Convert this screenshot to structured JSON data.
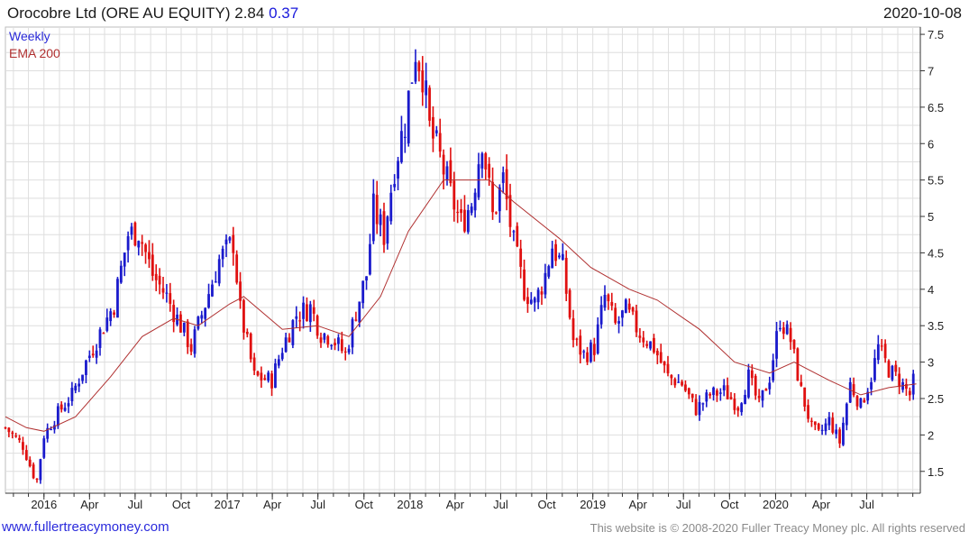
{
  "header": {
    "title_prefix": "Orocobre Ltd (ORE AU EQUITY) 2.84",
    "change": "0.37",
    "date": "2020-10-08"
  },
  "footer": {
    "site": "www.fullertreacymoney.com",
    "copyright": "This website is © 2008-2020 Fuller Treacy Money plc. All rights reserved"
  },
  "colors": {
    "up": "#1a1acc",
    "down": "#e01010",
    "ema": "#b03030",
    "grid": "#dedede",
    "axis": "#333333"
  },
  "chart_data": {
    "type": "candlestick",
    "legend": [
      "Weekly",
      "EMA 200"
    ],
    "legend_placement": "top-left",
    "y_axis_side": "right",
    "ylim": [
      1.2,
      7.6
    ],
    "yticks": [
      1.5,
      2,
      2.5,
      3,
      3.5,
      4,
      4.5,
      5,
      5.5,
      6,
      6.5,
      7,
      7.5
    ],
    "ytick_labels": [
      "1.5",
      "2",
      "2.5",
      "3",
      "3.5",
      "4",
      "4.5",
      "5",
      "5.5",
      "6",
      "6.5",
      "7",
      "7.5"
    ],
    "xlim": [
      "2015-10-16",
      "2020-10-16"
    ],
    "xticks": [
      "2016-01-01",
      "2016-04-01",
      "2016-07-01",
      "2016-10-01",
      "2017-01-01",
      "2017-04-01",
      "2017-07-01",
      "2017-10-01",
      "2018-01-01",
      "2018-04-01",
      "2018-07-01",
      "2018-10-01",
      "2019-01-01",
      "2019-04-01",
      "2019-07-01",
      "2019-10-01",
      "2020-01-01",
      "2020-04-01",
      "2020-07-01"
    ],
    "xtick_labels": [
      "2016",
      "Apr",
      "Jul",
      "Oct",
      "2017",
      "Apr",
      "Jul",
      "Oct",
      "2018",
      "Apr",
      "Jul",
      "Oct",
      "2019",
      "Apr",
      "Jul",
      "Oct",
      "2020",
      "Apr",
      "Jul"
    ],
    "grid": true,
    "close_path": [
      [
        "2015-10-16",
        2.1
      ],
      [
        "2015-11-20",
        1.85
      ],
      [
        "2015-12-11",
        1.45
      ],
      [
        "2015-12-18",
        1.38
      ],
      [
        "2016-01-01",
        2.0
      ],
      [
        "2016-01-29",
        2.3
      ],
      [
        "2016-02-26",
        2.55
      ],
      [
        "2016-03-25",
        3.0
      ],
      [
        "2016-04-22",
        3.4
      ],
      [
        "2016-05-20",
        3.8
      ],
      [
        "2016-06-17",
        4.75
      ],
      [
        "2016-07-08",
        4.8
      ],
      [
        "2016-08-05",
        4.2
      ],
      [
        "2016-09-02",
        3.9
      ],
      [
        "2016-09-30",
        3.5
      ],
      [
        "2016-10-21",
        3.2
      ],
      [
        "2016-11-18",
        3.8
      ],
      [
        "2016-12-16",
        4.4
      ],
      [
        "2017-01-13",
        4.65
      ],
      [
        "2017-01-27",
        3.7
      ],
      [
        "2017-02-24",
        2.8
      ],
      [
        "2017-03-31",
        2.75
      ],
      [
        "2017-04-21",
        3.2
      ],
      [
        "2017-05-19",
        3.65
      ],
      [
        "2017-06-16",
        3.75
      ],
      [
        "2017-07-07",
        3.4
      ],
      [
        "2017-07-28",
        3.35
      ],
      [
        "2017-08-25",
        3.1
      ],
      [
        "2017-09-15",
        3.7
      ],
      [
        "2017-10-06",
        4.2
      ],
      [
        "2017-10-20",
        5.1
      ],
      [
        "2017-11-10",
        4.75
      ],
      [
        "2017-12-01",
        5.7
      ],
      [
        "2017-12-22",
        6.3
      ],
      [
        "2018-01-12",
        7.3
      ],
      [
        "2018-01-26",
        7.0
      ],
      [
        "2018-02-09",
        6.2
      ],
      [
        "2018-03-02",
        5.8
      ],
      [
        "2018-03-23",
        5.3
      ],
      [
        "2018-04-13",
        4.9
      ],
      [
        "2018-05-04",
        5.2
      ],
      [
        "2018-05-25",
        6.1
      ],
      [
        "2018-06-15",
        5.0
      ],
      [
        "2018-07-06",
        5.5
      ],
      [
        "2018-07-27",
        4.6
      ],
      [
        "2018-08-17",
        4.0
      ],
      [
        "2018-09-07",
        3.8
      ],
      [
        "2018-09-28",
        4.2
      ],
      [
        "2018-10-12",
        4.6
      ],
      [
        "2018-11-02",
        4.3
      ],
      [
        "2018-11-23",
        3.3
      ],
      [
        "2018-12-14",
        3.1
      ],
      [
        "2019-01-04",
        3.2
      ],
      [
        "2019-01-25",
        3.9
      ],
      [
        "2019-02-15",
        3.5
      ],
      [
        "2019-03-08",
        3.7
      ],
      [
        "2019-04-05",
        3.4
      ],
      [
        "2019-05-03",
        3.2
      ],
      [
        "2019-05-31",
        2.8
      ],
      [
        "2019-06-28",
        2.7
      ],
      [
        "2019-07-26",
        2.35
      ],
      [
        "2019-08-23",
        2.55
      ],
      [
        "2019-09-20",
        2.6
      ],
      [
        "2019-10-18",
        2.4
      ],
      [
        "2019-11-08",
        2.8
      ],
      [
        "2019-11-29",
        2.4
      ],
      [
        "2019-12-20",
        2.8
      ],
      [
        "2020-01-10",
        3.6
      ],
      [
        "2020-01-31",
        3.3
      ],
      [
        "2020-02-21",
        2.6
      ],
      [
        "2020-03-13",
        2.1
      ],
      [
        "2020-03-27",
        2.0
      ],
      [
        "2020-04-17",
        2.2
      ],
      [
        "2020-05-08",
        1.9
      ],
      [
        "2020-05-29",
        2.7
      ],
      [
        "2020-06-19",
        2.4
      ],
      [
        "2020-07-10",
        2.8
      ],
      [
        "2020-07-24",
        3.2
      ],
      [
        "2020-08-14",
        2.9
      ],
      [
        "2020-09-04",
        2.75
      ],
      [
        "2020-09-25",
        2.55
      ],
      [
        "2020-10-08",
        2.84
      ]
    ],
    "ema_path": [
      [
        "2015-10-16",
        2.25
      ],
      [
        "2015-11-27",
        2.1
      ],
      [
        "2016-01-01",
        2.05
      ],
      [
        "2016-03-04",
        2.25
      ],
      [
        "2016-05-13",
        2.8
      ],
      [
        "2016-07-15",
        3.35
      ],
      [
        "2016-09-16",
        3.6
      ],
      [
        "2016-11-04",
        3.5
      ],
      [
        "2017-01-06",
        3.8
      ],
      [
        "2017-02-03",
        3.9
      ],
      [
        "2017-04-21",
        3.45
      ],
      [
        "2017-06-30",
        3.5
      ],
      [
        "2017-09-01",
        3.35
      ],
      [
        "2017-11-03",
        3.9
      ],
      [
        "2017-12-29",
        4.8
      ],
      [
        "2018-03-09",
        5.5
      ],
      [
        "2018-06-08",
        5.5
      ],
      [
        "2018-07-27",
        5.2
      ],
      [
        "2018-10-26",
        4.7
      ],
      [
        "2018-12-28",
        4.3
      ],
      [
        "2019-03-15",
        4.0
      ],
      [
        "2019-05-10",
        3.85
      ],
      [
        "2019-08-02",
        3.45
      ],
      [
        "2019-10-11",
        3.0
      ],
      [
        "2019-12-20",
        2.85
      ],
      [
        "2020-02-07",
        3.0
      ],
      [
        "2020-04-17",
        2.75
      ],
      [
        "2020-06-19",
        2.55
      ],
      [
        "2020-08-14",
        2.65
      ],
      [
        "2020-10-08",
        2.7
      ]
    ]
  }
}
